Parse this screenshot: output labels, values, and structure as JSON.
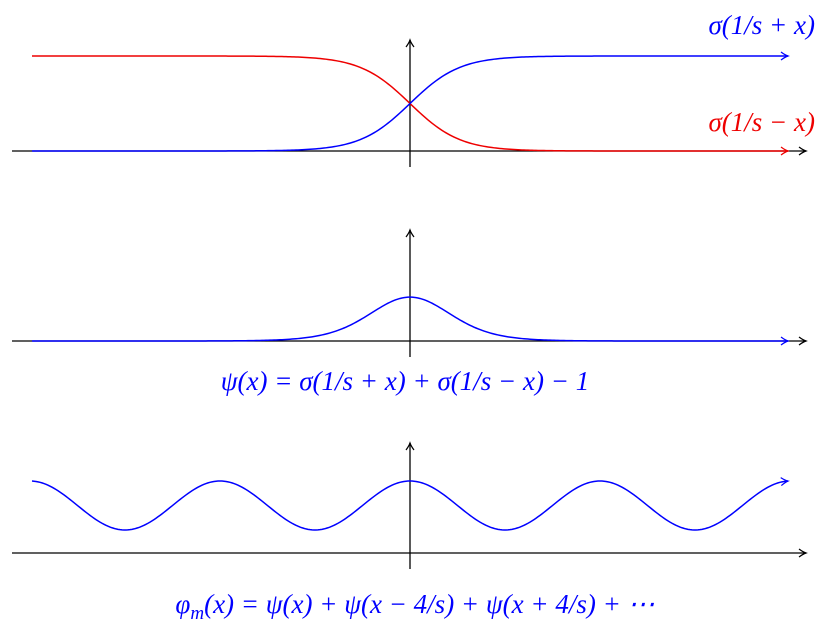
{
  "panels": [
    {
      "labels": [
        "σ(1/s + x)",
        "σ(1/s − x)"
      ]
    },
    {
      "labels": [
        "ψ(x) = σ(1/s + x) + σ(1/s − x) − 1"
      ]
    },
    {
      "label": {
        "symbol": "φ",
        "subscript": "m",
        "rest": "(x) = ψ(x) + ψ(x − 4/s) + ψ(x + 4/s) + ⋯"
      }
    }
  ]
}
